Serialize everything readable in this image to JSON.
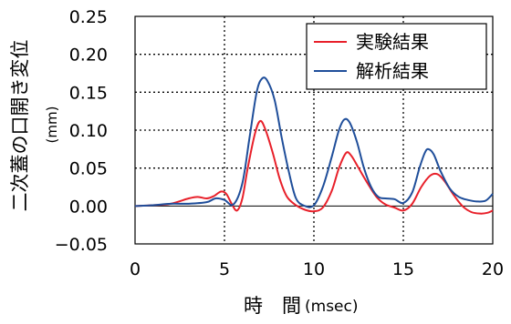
{
  "chart_data": {
    "type": "line",
    "xlabel": "時　間",
    "xunit": "(msec)",
    "ylabel": "二次蓋の口開き変位",
    "yunit": "(mm)",
    "xlim": [
      0,
      20
    ],
    "ylim": [
      -0.05,
      0.25
    ],
    "xticks": [
      "0",
      "5",
      "10",
      "15",
      "20"
    ],
    "yticks": [
      "0.25",
      "0.20",
      "0.15",
      "0.10",
      "0.05",
      "0.00",
      "−0.05"
    ],
    "grid": "dotted",
    "legend_position": "top-right",
    "series": [
      {
        "name": "実験結果",
        "color": "#e8202a",
        "points": [
          [
            0,
            0
          ],
          [
            1,
            0.001
          ],
          [
            2,
            0.003
          ],
          [
            3,
            0.01
          ],
          [
            3.5,
            0.012
          ],
          [
            4,
            0.01
          ],
          [
            4.4,
            0.013
          ],
          [
            4.8,
            0.019
          ],
          [
            5.1,
            0.016
          ],
          [
            5.4,
            0.003
          ],
          [
            5.7,
            -0.006
          ],
          [
            6.0,
            0.01
          ],
          [
            6.3,
            0.05
          ],
          [
            6.7,
            0.095
          ],
          [
            7.0,
            0.112
          ],
          [
            7.3,
            0.1
          ],
          [
            7.7,
            0.07
          ],
          [
            8.1,
            0.035
          ],
          [
            8.5,
            0.012
          ],
          [
            9.0,
            0.001
          ],
          [
            9.5,
            -0.005
          ],
          [
            10.0,
            -0.007
          ],
          [
            10.5,
            -0.002
          ],
          [
            11.0,
            0.02
          ],
          [
            11.4,
            0.05
          ],
          [
            11.8,
            0.07
          ],
          [
            12.1,
            0.066
          ],
          [
            12.5,
            0.05
          ],
          [
            13.0,
            0.03
          ],
          [
            13.5,
            0.012
          ],
          [
            14.0,
            0.002
          ],
          [
            14.5,
            -0.002
          ],
          [
            15.0,
            -0.006
          ],
          [
            15.5,
            0.003
          ],
          [
            16.0,
            0.025
          ],
          [
            16.5,
            0.04
          ],
          [
            16.9,
            0.042
          ],
          [
            17.3,
            0.033
          ],
          [
            17.8,
            0.015
          ],
          [
            18.3,
            0
          ],
          [
            18.8,
            -0.008
          ],
          [
            19.3,
            -0.01
          ],
          [
            19.7,
            -0.009
          ],
          [
            20,
            -0.006
          ]
        ]
      },
      {
        "name": "解析結果",
        "color": "#1f4e9a",
        "points": [
          [
            0,
            0
          ],
          [
            1,
            0.001
          ],
          [
            2,
            0.003
          ],
          [
            3,
            0.003
          ],
          [
            4,
            0.005
          ],
          [
            4.5,
            0.01
          ],
          [
            5.0,
            0.008
          ],
          [
            5.5,
            0.002
          ],
          [
            6.0,
            0.03
          ],
          [
            6.4,
            0.09
          ],
          [
            6.8,
            0.15
          ],
          [
            7.1,
            0.168
          ],
          [
            7.4,
            0.165
          ],
          [
            7.8,
            0.14
          ],
          [
            8.2,
            0.09
          ],
          [
            8.6,
            0.045
          ],
          [
            9.0,
            0.01
          ],
          [
            9.5,
            0
          ],
          [
            10.0,
            0.001
          ],
          [
            10.5,
            0.025
          ],
          [
            11.0,
            0.065
          ],
          [
            11.4,
            0.1
          ],
          [
            11.7,
            0.114
          ],
          [
            12.0,
            0.11
          ],
          [
            12.4,
            0.085
          ],
          [
            12.8,
            0.05
          ],
          [
            13.2,
            0.025
          ],
          [
            13.6,
            0.012
          ],
          [
            14.0,
            0.01
          ],
          [
            14.5,
            0.009
          ],
          [
            15.0,
            0.004
          ],
          [
            15.5,
            0.018
          ],
          [
            15.9,
            0.05
          ],
          [
            16.2,
            0.07
          ],
          [
            16.4,
            0.075
          ],
          [
            16.7,
            0.068
          ],
          [
            17.1,
            0.045
          ],
          [
            17.6,
            0.023
          ],
          [
            18.1,
            0.012
          ],
          [
            18.6,
            0.008
          ],
          [
            19.1,
            0.006
          ],
          [
            19.6,
            0.007
          ],
          [
            20,
            0.016
          ]
        ]
      }
    ]
  }
}
